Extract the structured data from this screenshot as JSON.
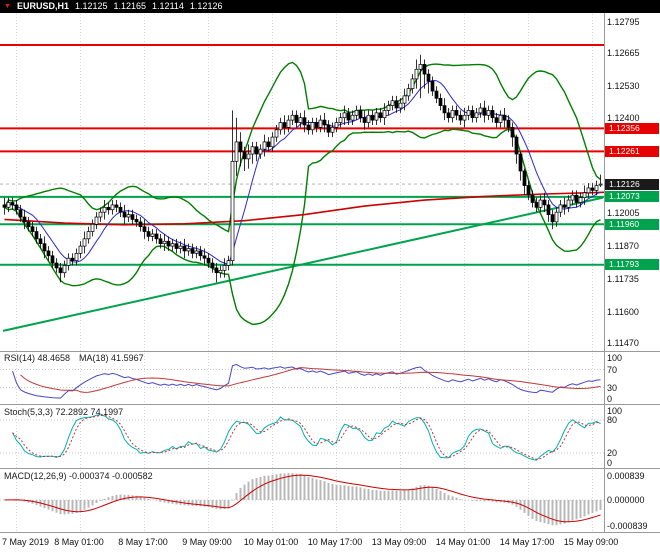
{
  "header": {
    "symbol_period": "EURUSD,H1",
    "open": "1.12125",
    "high": "1.12165",
    "low": "1.12114",
    "close": "1.12126"
  },
  "price_axis": {
    "ticks": [
      "1.12795",
      "1.12665",
      "1.12530",
      "1.12400",
      "1.12005",
      "1.11870",
      "1.11735",
      "1.11600",
      "1.11470"
    ],
    "badges": [
      {
        "text": "1.12356",
        "price": 1.12356,
        "color": "#e60000"
      },
      {
        "text": "1.12261",
        "price": 1.12261,
        "color": "#e60000"
      },
      {
        "text": "1.12126",
        "price": 1.12126,
        "color": "#1a1a1a"
      },
      {
        "text": "1.12073",
        "price": 1.12073,
        "color": "#00a24d"
      },
      {
        "text": "1.11960",
        "price": 1.1196,
        "color": "#00a24d"
      },
      {
        "text": "1.11793",
        "price": 1.11793,
        "color": "#00a24d"
      }
    ]
  },
  "time_axis": {
    "labels": [
      {
        "text": "7 May 2019",
        "bar": 3
      },
      {
        "text": "8 May 01:00",
        "bar": 19
      },
      {
        "text": "8 May 17:00",
        "bar": 35
      },
      {
        "text": "9 May 09:00",
        "bar": 51
      },
      {
        "text": "10 May 01:00",
        "bar": 67
      },
      {
        "text": "10 May 17:00",
        "bar": 83
      },
      {
        "text": "13 May 09:00",
        "bar": 99
      },
      {
        "text": "14 May 01:00",
        "bar": 115
      },
      {
        "text": "14 May 17:00",
        "bar": 131
      },
      {
        "text": "15 May 09:00",
        "bar": 147
      }
    ]
  },
  "panels": {
    "rsi": {
      "label": "RSI(14) 48.4658",
      "ma_label": "MA(18) 41.5967",
      "levels": [
        70,
        30
      ],
      "scale": [
        {
          "text": "100",
          "value": 100
        },
        {
          "text": "70",
          "value": 70
        },
        {
          "text": "30",
          "value": 30
        },
        {
          "text": "0",
          "value": 0
        }
      ]
    },
    "stoch": {
      "label": "Stoch(5,3,3) 72.2892 74.1997",
      "levels": [
        80,
        20
      ],
      "scale": [
        {
          "text": "100",
          "value": 100
        },
        {
          "text": "80",
          "value": 80
        },
        {
          "text": "20",
          "value": 20
        },
        {
          "text": "0",
          "value": 0
        }
      ]
    },
    "macd": {
      "label": "MACD(12,26,9) -0.000374 -0.000582",
      "scale": [
        {
          "text": "0.000839",
          "pos": "top"
        },
        {
          "text": "0.000000",
          "pos": "zero"
        },
        {
          "text": "-0.000839",
          "pos": "bottom"
        }
      ]
    }
  },
  "colors": {
    "bull": "#ffffff",
    "bear": "#000000",
    "outline": "#000000",
    "bb": "#007e00",
    "resistance": "#e60000",
    "support": "#00a24d",
    "trend": "#00a24d",
    "slow_ma": "#cc0000",
    "fast_ma": "#2a2ad0",
    "rsi": "#4848c8",
    "rsi_ma": "#c03838",
    "stoch_k": "#00b2b2",
    "stoch_d": "#c03838",
    "macd_hist": "#b8b8b8",
    "macd_signal": "#cc0000",
    "grid": "#d8d8d8",
    "panel_border": "#9a9a9a",
    "topbar_bg": "#000000",
    "topbar_text": "#ffffff"
  },
  "chart_data": {
    "type": "candlestick",
    "symbol": "EURUSD",
    "timeframe": "H1",
    "y_range": [
      1.1144,
      1.1283
    ],
    "current_price": 1.12126,
    "levels": {
      "resistance": [
        1.127,
        1.12356,
        1.12261
      ],
      "support": [
        1.12073,
        1.1196,
        1.11793
      ]
    },
    "trendline": {
      "bar1": 0,
      "price1": 1.1152,
      "bar2": 150,
      "price2": 1.1207
    },
    "slow_ma_points": [
      [
        0,
        1.1198
      ],
      [
        15,
        1.11965
      ],
      [
        30,
        1.11958
      ],
      [
        45,
        1.11962
      ],
      [
        60,
        1.11975
      ],
      [
        75,
        1.12
      ],
      [
        90,
        1.12035
      ],
      [
        105,
        1.1206
      ],
      [
        120,
        1.12075
      ],
      [
        135,
        1.12085
      ],
      [
        150,
        1.12092
      ]
    ],
    "indicators": [
      {
        "name": "Bollinger Bands",
        "period": 20,
        "deviation": 2
      },
      {
        "name": "SMA",
        "period": 8
      },
      {
        "name": "RSI",
        "period": 14,
        "ma": 18
      },
      {
        "name": "Stochastic",
        "k": 5,
        "d": 3,
        "slowing": 3
      },
      {
        "name": "MACD",
        "fast": 12,
        "slow": 26,
        "signal": 9
      }
    ],
    "candles": [
      [
        1.1204,
        1.1207,
        1.12,
        1.1203
      ],
      [
        1.1203,
        1.1207,
        1.1201,
        1.1205
      ],
      [
        1.1205,
        1.1207,
        1.1202,
        1.1204
      ],
      [
        1.1204,
        1.1206,
        1.12,
        1.1202
      ],
      [
        1.1202,
        1.1204,
        1.1197,
        1.1199
      ],
      [
        1.1199,
        1.1202,
        1.1194,
        1.1197
      ],
      [
        1.1197,
        1.1199,
        1.1193,
        1.1195
      ],
      [
        1.1195,
        1.1197,
        1.1191,
        1.1193
      ],
      [
        1.1193,
        1.1195,
        1.1188,
        1.119
      ],
      [
        1.119,
        1.1192,
        1.1186,
        1.1188
      ],
      [
        1.1188,
        1.1191,
        1.1182,
        1.1185
      ],
      [
        1.1185,
        1.1187,
        1.1181,
        1.1183
      ],
      [
        1.1183,
        1.1185,
        1.1178,
        1.118
      ],
      [
        1.118,
        1.1182,
        1.1176,
        1.1178
      ],
      [
        1.1178,
        1.118,
        1.1172,
        1.1176
      ],
      [
        1.1176,
        1.1181,
        1.1174,
        1.1179
      ],
      [
        1.1179,
        1.1184,
        1.1177,
        1.1182
      ],
      [
        1.1182,
        1.1184,
        1.1179,
        1.1181
      ],
      [
        1.1181,
        1.1186,
        1.1179,
        1.1184
      ],
      [
        1.1184,
        1.1189,
        1.1182,
        1.1187
      ],
      [
        1.1187,
        1.1193,
        1.1184,
        1.119
      ],
      [
        1.119,
        1.1195,
        1.1188,
        1.1193
      ],
      [
        1.1193,
        1.1198,
        1.1191,
        1.1196
      ],
      [
        1.1196,
        1.1201,
        1.1194,
        1.1199
      ],
      [
        1.1199,
        1.1203,
        1.1197,
        1.1201
      ],
      [
        1.1201,
        1.1206,
        1.1198,
        1.1203
      ],
      [
        1.1203,
        1.1205,
        1.12,
        1.1202
      ],
      [
        1.1202,
        1.1206,
        1.12,
        1.1204
      ],
      [
        1.1204,
        1.1206,
        1.1201,
        1.1203
      ],
      [
        1.1203,
        1.1205,
        1.1199,
        1.1201
      ],
      [
        1.1201,
        1.1204,
        1.1196,
        1.1199
      ],
      [
        1.1199,
        1.1202,
        1.1197,
        1.12
      ],
      [
        1.12,
        1.1202,
        1.1196,
        1.1198
      ],
      [
        1.1198,
        1.12,
        1.1195,
        1.1197
      ],
      [
        1.1197,
        1.1199,
        1.1193,
        1.1195
      ],
      [
        1.1195,
        1.1198,
        1.119,
        1.1193
      ],
      [
        1.1193,
        1.1195,
        1.1189,
        1.1191
      ],
      [
        1.1191,
        1.1194,
        1.1189,
        1.1192
      ],
      [
        1.1192,
        1.1194,
        1.1188,
        1.119
      ],
      [
        1.119,
        1.1192,
        1.1186,
        1.1188
      ],
      [
        1.1188,
        1.1192,
        1.1185,
        1.1189
      ],
      [
        1.1189,
        1.1191,
        1.1185,
        1.1187
      ],
      [
        1.1187,
        1.119,
        1.1185,
        1.1188
      ],
      [
        1.1188,
        1.119,
        1.1184,
        1.1186
      ],
      [
        1.1186,
        1.1189,
        1.1184,
        1.1187
      ],
      [
        1.1187,
        1.119,
        1.1182,
        1.1185
      ],
      [
        1.1185,
        1.1188,
        1.1183,
        1.1186
      ],
      [
        1.1186,
        1.1188,
        1.1182,
        1.1184
      ],
      [
        1.1184,
        1.1187,
        1.1182,
        1.1185
      ],
      [
        1.1185,
        1.1187,
        1.1181,
        1.1183
      ],
      [
        1.1183,
        1.1186,
        1.1179,
        1.1182
      ],
      [
        1.1182,
        1.1184,
        1.1178,
        1.118
      ],
      [
        1.118,
        1.1182,
        1.1176,
        1.1178
      ],
      [
        1.1178,
        1.118,
        1.1172,
        1.1176
      ],
      [
        1.1176,
        1.1179,
        1.1174,
        1.1177
      ],
      [
        1.1177,
        1.1182,
        1.1174,
        1.1179
      ],
      [
        1.1179,
        1.1183,
        1.1177,
        1.1181
      ],
      [
        1.1181,
        1.1243,
        1.1179,
        1.1222
      ],
      [
        1.1222,
        1.124,
        1.1216,
        1.123
      ],
      [
        1.123,
        1.1234,
        1.122,
        1.1226
      ],
      [
        1.1226,
        1.1228,
        1.1218,
        1.1223
      ],
      [
        1.1223,
        1.1229,
        1.1219,
        1.1225
      ],
      [
        1.1225,
        1.123,
        1.1221,
        1.1228
      ],
      [
        1.1228,
        1.123,
        1.1222,
        1.1225
      ],
      [
        1.1225,
        1.1229,
        1.1223,
        1.1227
      ],
      [
        1.1227,
        1.1233,
        1.1224,
        1.123
      ],
      [
        1.123,
        1.1232,
        1.1226,
        1.1228
      ],
      [
        1.1228,
        1.1234,
        1.1226,
        1.1232
      ],
      [
        1.1232,
        1.1237,
        1.123,
        1.1235
      ],
      [
        1.1235,
        1.124,
        1.1233,
        1.1238
      ],
      [
        1.1238,
        1.1241,
        1.1233,
        1.1236
      ],
      [
        1.1236,
        1.1241,
        1.1234,
        1.1239
      ],
      [
        1.1239,
        1.1243,
        1.1237,
        1.1241
      ],
      [
        1.1241,
        1.1243,
        1.1236,
        1.1238
      ],
      [
        1.1238,
        1.1242,
        1.1236,
        1.124
      ],
      [
        1.124,
        1.1243,
        1.1234,
        1.1237
      ],
      [
        1.1237,
        1.1239,
        1.1233,
        1.1235
      ],
      [
        1.1235,
        1.124,
        1.1233,
        1.1238
      ],
      [
        1.1238,
        1.124,
        1.1234,
        1.1236
      ],
      [
        1.1236,
        1.1241,
        1.1234,
        1.1239
      ],
      [
        1.1239,
        1.1242,
        1.1234,
        1.1237
      ],
      [
        1.1237,
        1.1239,
        1.1232,
        1.1234
      ],
      [
        1.1234,
        1.1238,
        1.1232,
        1.1236
      ],
      [
        1.1236,
        1.124,
        1.1234,
        1.1238
      ],
      [
        1.1238,
        1.1242,
        1.1236,
        1.124
      ],
      [
        1.124,
        1.1245,
        1.1237,
        1.1242
      ],
      [
        1.1242,
        1.1244,
        1.1237,
        1.1239
      ],
      [
        1.1239,
        1.1243,
        1.1237,
        1.1241
      ],
      [
        1.1241,
        1.1245,
        1.1239,
        1.1243
      ],
      [
        1.1243,
        1.1245,
        1.1238,
        1.124
      ],
      [
        1.124,
        1.1243,
        1.1235,
        1.1238
      ],
      [
        1.1238,
        1.1243,
        1.1236,
        1.1241
      ],
      [
        1.1241,
        1.1243,
        1.1237,
        1.1239
      ],
      [
        1.1239,
        1.1244,
        1.1237,
        1.1242
      ],
      [
        1.1242,
        1.1244,
        1.1238,
        1.124
      ],
      [
        1.124,
        1.1246,
        1.1237,
        1.1243
      ],
      [
        1.1243,
        1.1247,
        1.1241,
        1.1245
      ],
      [
        1.1245,
        1.1249,
        1.1243,
        1.1247
      ],
      [
        1.1247,
        1.1249,
        1.1242,
        1.1244
      ],
      [
        1.1244,
        1.1248,
        1.1242,
        1.1246
      ],
      [
        1.1246,
        1.1252,
        1.1243,
        1.1249
      ],
      [
        1.1249,
        1.1254,
        1.1247,
        1.1252
      ],
      [
        1.1252,
        1.1258,
        1.125,
        1.1256
      ],
      [
        1.1256,
        1.1264,
        1.1252,
        1.126
      ],
      [
        1.126,
        1.1266,
        1.1248,
        1.1262
      ],
      [
        1.1262,
        1.1264,
        1.1252,
        1.1258
      ],
      [
        1.1258,
        1.126,
        1.125,
        1.1255
      ],
      [
        1.1255,
        1.1257,
        1.1249,
        1.1251
      ],
      [
        1.1251,
        1.1253,
        1.1246,
        1.1248
      ],
      [
        1.1248,
        1.125,
        1.1243,
        1.1245
      ],
      [
        1.1245,
        1.1248,
        1.1239,
        1.1242
      ],
      [
        1.1242,
        1.1244,
        1.1238,
        1.124
      ],
      [
        1.124,
        1.1245,
        1.1238,
        1.1243
      ],
      [
        1.1243,
        1.1245,
        1.1239,
        1.1241
      ],
      [
        1.1241,
        1.1243,
        1.1237,
        1.1239
      ],
      [
        1.1239,
        1.1244,
        1.1236,
        1.1241
      ],
      [
        1.1241,
        1.1245,
        1.1239,
        1.1243
      ],
      [
        1.1243,
        1.1245,
        1.1238,
        1.124
      ],
      [
        1.124,
        1.1244,
        1.1238,
        1.1242
      ],
      [
        1.1242,
        1.1246,
        1.124,
        1.1244
      ],
      [
        1.1244,
        1.1247,
        1.1238,
        1.1241
      ],
      [
        1.1241,
        1.1245,
        1.1239,
        1.1243
      ],
      [
        1.1243,
        1.1245,
        1.1238,
        1.124
      ],
      [
        1.124,
        1.1242,
        1.1236,
        1.1238
      ],
      [
        1.1238,
        1.1243,
        1.1236,
        1.1241
      ],
      [
        1.1241,
        1.1244,
        1.1236,
        1.1239
      ],
      [
        1.1239,
        1.1241,
        1.1234,
        1.1236
      ],
      [
        1.1236,
        1.1238,
        1.1228,
        1.1232
      ],
      [
        1.1232,
        1.1233,
        1.1221,
        1.1225
      ],
      [
        1.1225,
        1.1226,
        1.1214,
        1.1218
      ],
      [
        1.1218,
        1.1219,
        1.1208,
        1.1212
      ],
      [
        1.1212,
        1.1214,
        1.1206,
        1.1208
      ],
      [
        1.1208,
        1.121,
        1.1203,
        1.1205
      ],
      [
        1.1205,
        1.1207,
        1.1201,
        1.1203
      ],
      [
        1.1203,
        1.1208,
        1.1201,
        1.1206
      ],
      [
        1.1206,
        1.1209,
        1.1201,
        1.1204
      ],
      [
        1.1204,
        1.1206,
        1.1197,
        1.12
      ],
      [
        1.12,
        1.1202,
        1.1194,
        1.1197
      ],
      [
        1.1197,
        1.1203,
        1.1195,
        1.1201
      ],
      [
        1.1201,
        1.1206,
        1.1199,
        1.1204
      ],
      [
        1.1204,
        1.1207,
        1.12,
        1.1203
      ],
      [
        1.1203,
        1.1208,
        1.1201,
        1.1206
      ],
      [
        1.1206,
        1.121,
        1.1204,
        1.1208
      ],
      [
        1.1208,
        1.121,
        1.1203,
        1.1205
      ],
      [
        1.1205,
        1.1209,
        1.1203,
        1.1207
      ],
      [
        1.1207,
        1.1212,
        1.1204,
        1.1209
      ],
      [
        1.1209,
        1.1213,
        1.1207,
        1.1211
      ],
      [
        1.1211,
        1.1213,
        1.1208,
        1.121
      ],
      [
        1.121,
        1.1214,
        1.1208,
        1.1212
      ],
      [
        1.12125,
        1.12165,
        1.12114,
        1.12126
      ]
    ]
  }
}
